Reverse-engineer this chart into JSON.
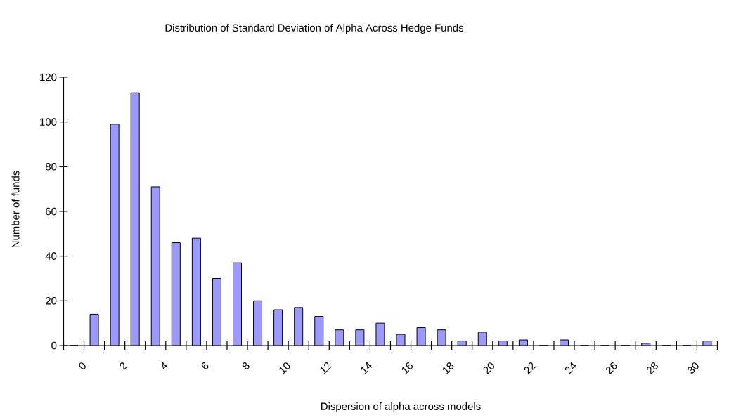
{
  "chart_data": {
    "type": "bar",
    "title": "Distribution of Standard Deviation of Alpha Across Hedge Funds",
    "xlabel": "Dispersion of alpha across models",
    "ylabel": "Number of funds",
    "categories": [
      "0",
      null,
      "2",
      null,
      "4",
      null,
      "6",
      null,
      "8",
      null,
      "10",
      null,
      "12",
      null,
      "14",
      null,
      "16",
      null,
      "18",
      null,
      "20",
      null,
      "22",
      null,
      "24",
      null,
      "26",
      null,
      "28",
      null,
      "30",
      null
    ],
    "values": [
      0,
      14,
      99,
      113,
      71,
      46,
      48,
      30,
      37,
      20,
      16,
      17,
      13,
      7,
      7,
      10,
      5,
      8,
      7,
      2,
      6,
      2,
      2.5,
      0,
      2.5,
      0,
      0,
      0,
      1,
      0,
      0,
      2
    ],
    "color": "#9999ff",
    "ylim": [
      0,
      120
    ],
    "yticks": [
      0,
      20,
      40,
      60,
      80,
      100,
      120
    ]
  }
}
